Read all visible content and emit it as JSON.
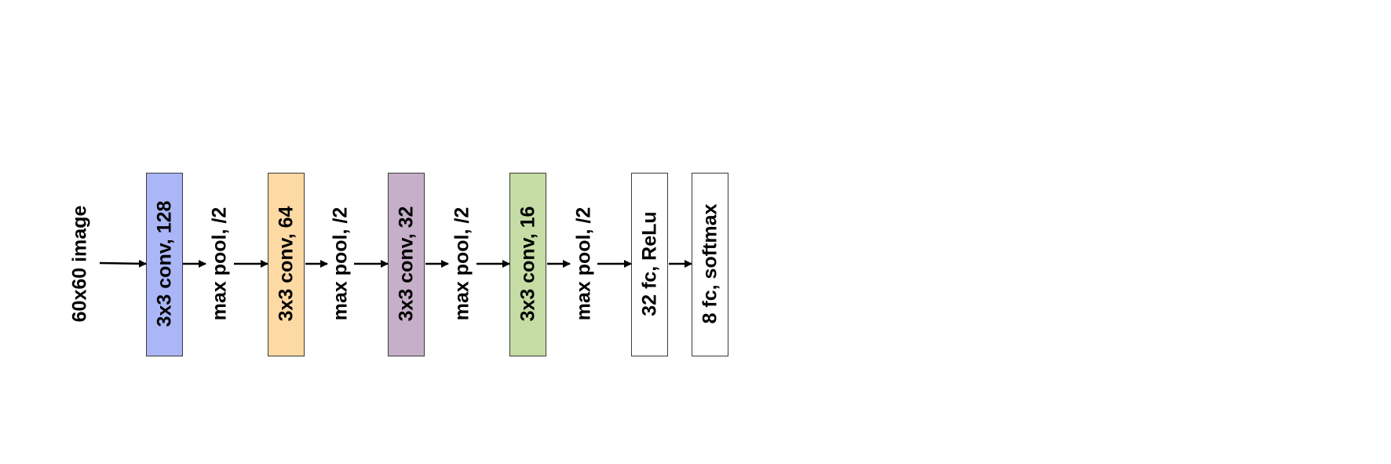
{
  "input": {
    "label": "60x60 image"
  },
  "layers": [
    {
      "label": "3x3 conv, 128",
      "color": "#aab6f5"
    },
    {
      "label": "max pool, /2"
    },
    {
      "label": "3x3 conv, 64",
      "color": "#fdd9a4"
    },
    {
      "label": "max pool, /2"
    },
    {
      "label": "3x3 conv, 32",
      "color": "#c6afc9"
    },
    {
      "label": "max pool, /2"
    },
    {
      "label": "3x3 conv, 16",
      "color": "#c6dca5"
    },
    {
      "label": "max pool, /2"
    },
    {
      "label": "32 fc, ReLu",
      "color": "#ffffff"
    },
    {
      "label": "8 fc, softmax",
      "color": "#ffffff"
    }
  ]
}
